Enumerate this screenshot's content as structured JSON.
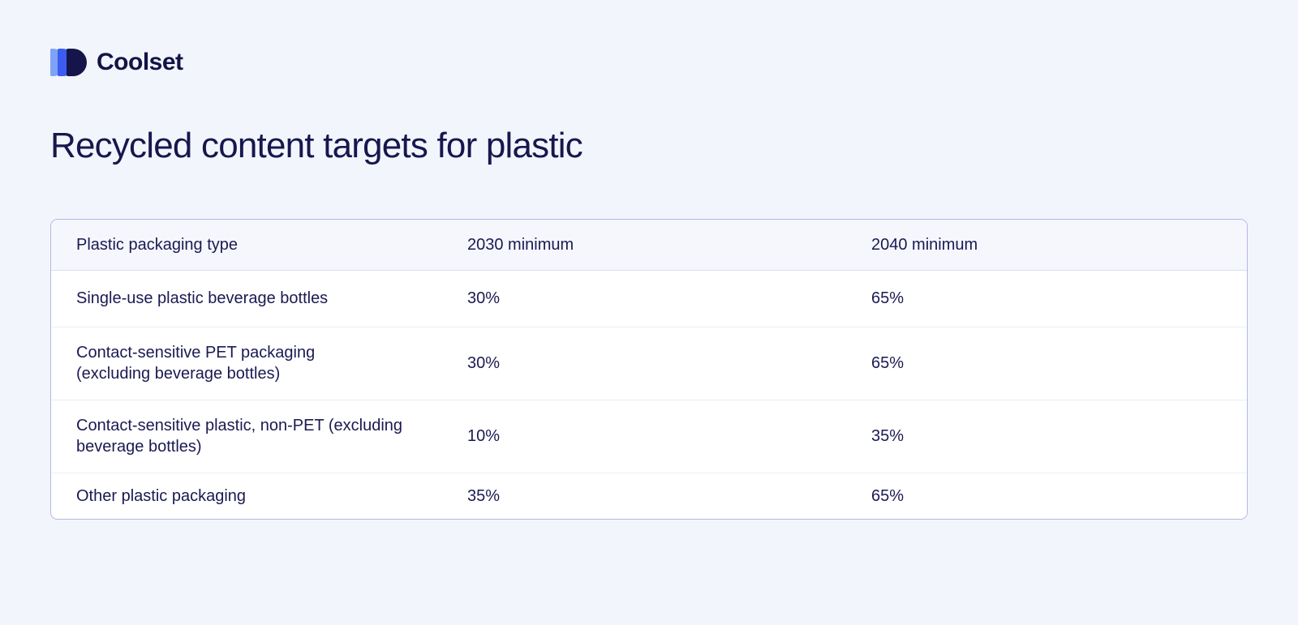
{
  "brand": {
    "name": "Coolset"
  },
  "page": {
    "title": "Recycled content targets for plastic"
  },
  "colors": {
    "page_background": "#f2f5fc",
    "text_navy": "#1a1a52",
    "table_border": "#b4b9e7",
    "header_background": "#f5f7fd",
    "logo_light_blue": "#7ea2f6",
    "logo_blue": "#3c5cf0",
    "logo_navy": "#15154b"
  },
  "table": {
    "headers": [
      "Plastic packaging type",
      "2030 minimum",
      "2040 minimum"
    ],
    "rows": [
      {
        "type": "Single-use plastic beverage bottles",
        "min2030": "30%",
        "min2040": "65%"
      },
      {
        "type": "Contact-sensitive PET packaging\n(excluding beverage bottles)",
        "min2030": "30%",
        "min2040": "65%"
      },
      {
        "type": "Contact-sensitive plastic, non-PET (excluding\nbeverage bottles)",
        "min2030": "10%",
        "min2040": "35%"
      },
      {
        "type": "Other plastic packaging",
        "min2030": "35%",
        "min2040": "65%"
      }
    ]
  }
}
